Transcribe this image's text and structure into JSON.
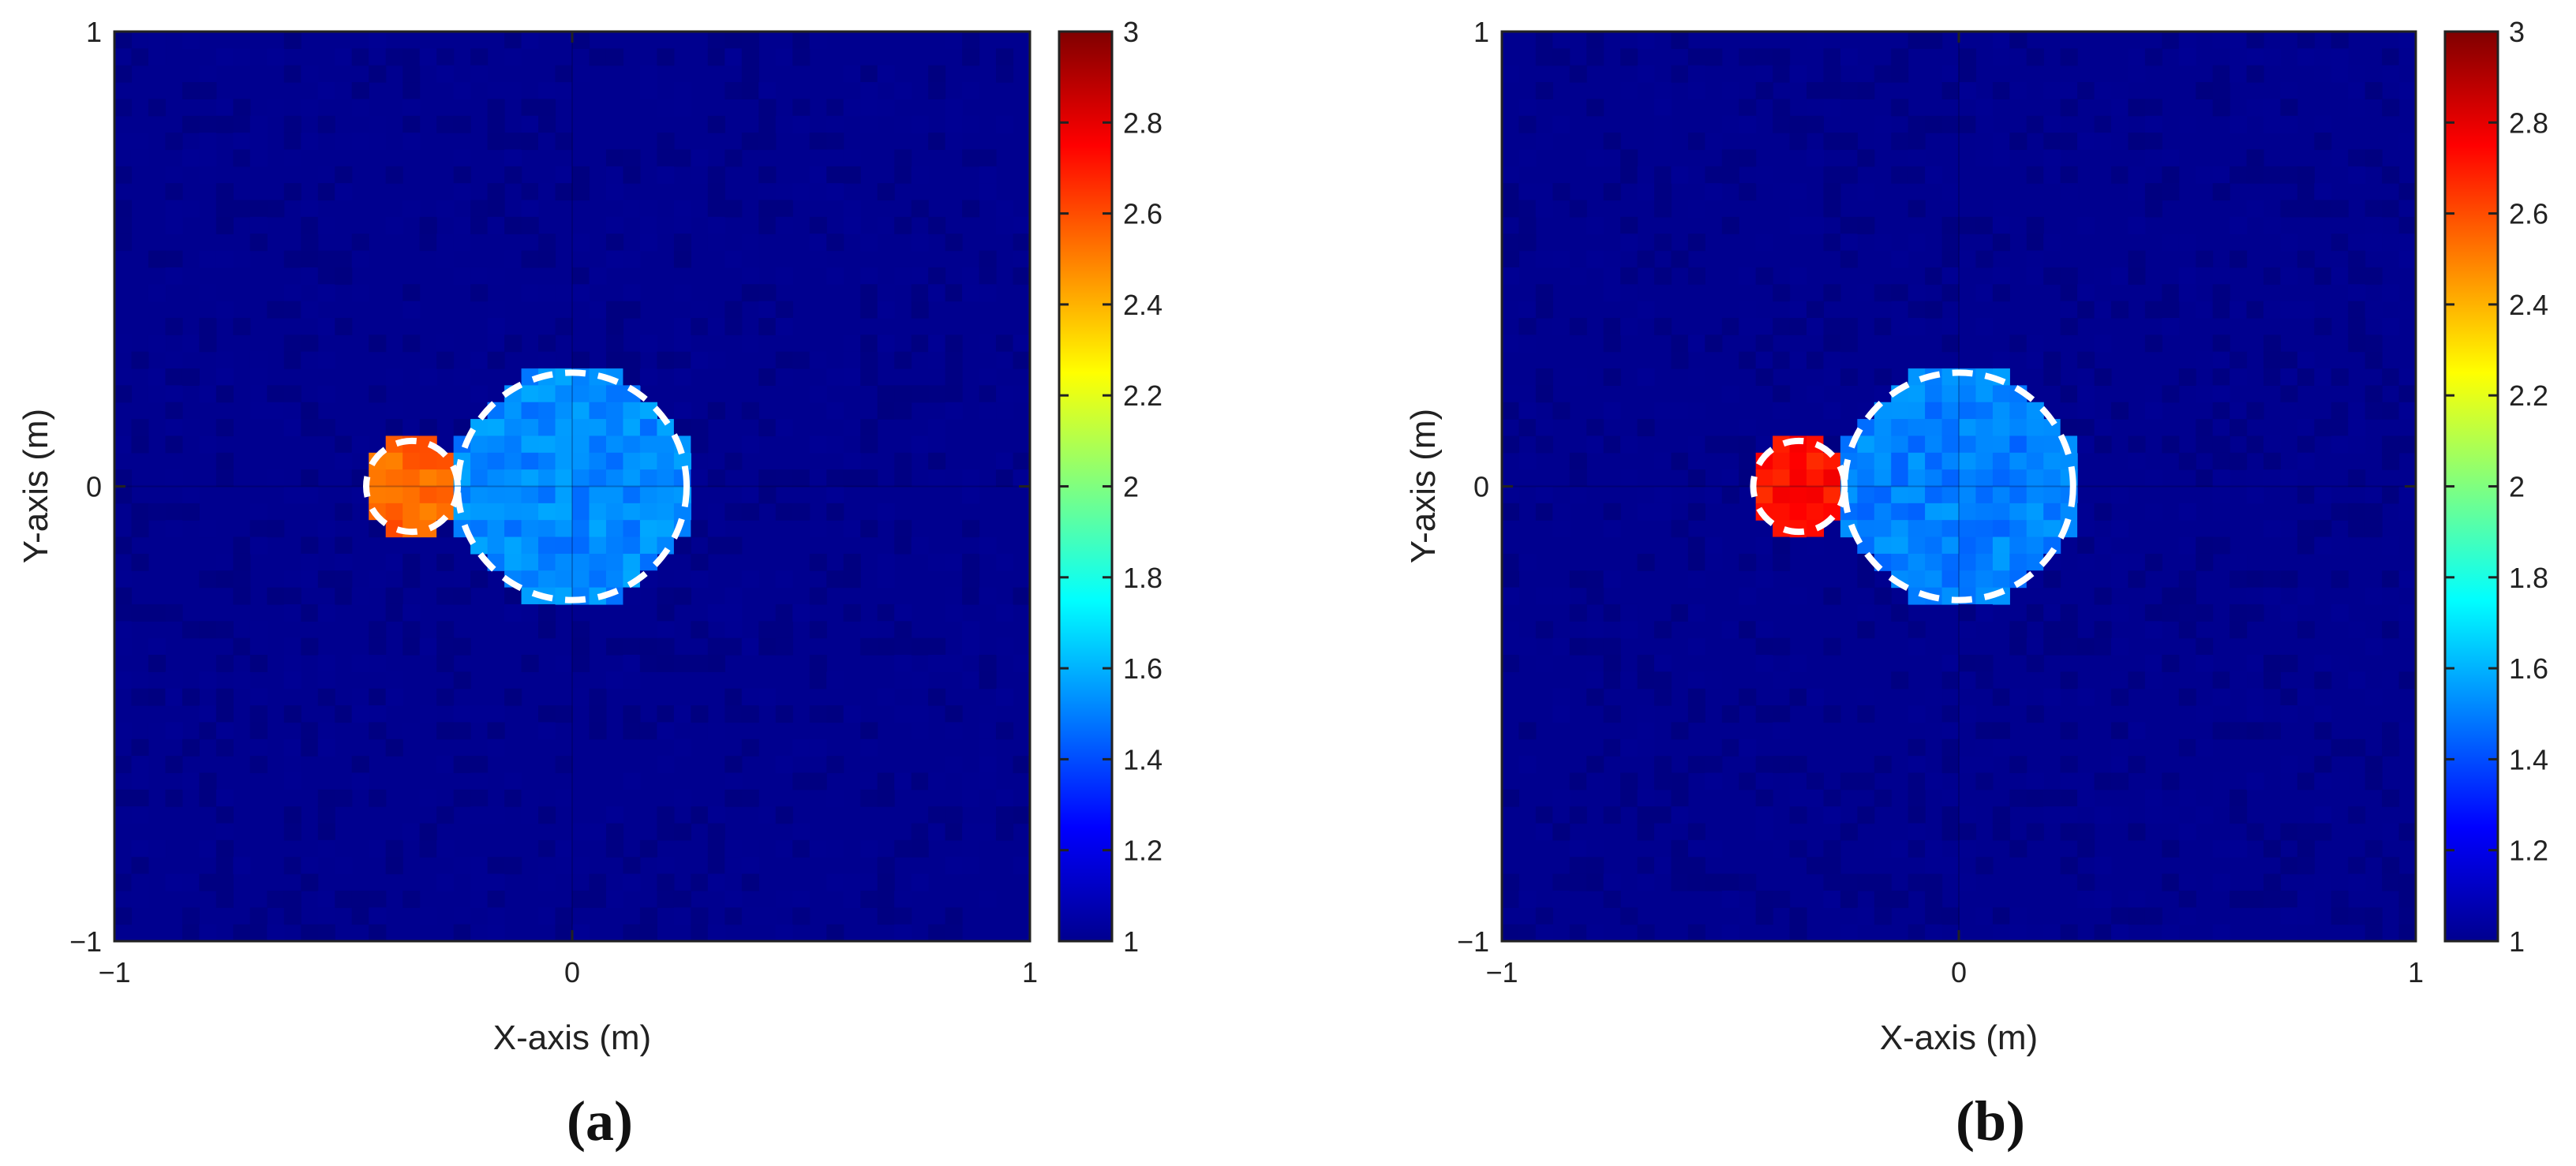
{
  "colormap": "jet",
  "background_color": "#00008f",
  "circle_outline_color": "#ffffff",
  "chart_data": [
    {
      "type": "heatmap",
      "panel_label": "(a)",
      "xlabel": "X-axis (m)",
      "ylabel": "Y-axis (m)",
      "xlim": [
        -1,
        1
      ],
      "ylim": [
        -1,
        1
      ],
      "xticks": [
        -1,
        0,
        1
      ],
      "yticks": [
        -1,
        0,
        1
      ],
      "xtick_labels": [
        "−1",
        "0",
        "1"
      ],
      "ytick_labels": [
        "−1",
        "0",
        "1"
      ],
      "colorbar": {
        "min": 1,
        "max": 3,
        "ticks": [
          1,
          1.2,
          1.4,
          1.6,
          1.8,
          2,
          2.2,
          2.4,
          2.6,
          2.8,
          3
        ],
        "tick_labels": [
          "1",
          "1.2",
          "1.4",
          "1.6",
          "1.8",
          "2",
          "2.2",
          "2.4",
          "2.6",
          "2.8",
          "3"
        ]
      },
      "background_value": 1.02,
      "objects": [
        {
          "name": "small scatterer",
          "center": [
            -0.35,
            0.0
          ],
          "radius": 0.1,
          "value": 2.55
        },
        {
          "name": "large scatterer",
          "center": [
            0.0,
            0.0
          ],
          "radius": 0.25,
          "value": 1.52
        }
      ],
      "outlines": [
        {
          "center": [
            -0.35,
            0.0
          ],
          "radius": 0.1
        },
        {
          "center": [
            0.0,
            0.0
          ],
          "radius": 0.25
        }
      ]
    },
    {
      "type": "heatmap",
      "panel_label": "(b)",
      "xlabel": "X-axis (m)",
      "ylabel": "Y-axis (m)",
      "xlim": [
        -1,
        1
      ],
      "ylim": [
        -1,
        1
      ],
      "xticks": [
        -1,
        0,
        1
      ],
      "yticks": [
        -1,
        0,
        1
      ],
      "xtick_labels": [
        "−1",
        "0",
        "1"
      ],
      "ytick_labels": [
        "−1",
        "0",
        "1"
      ],
      "colorbar": {
        "min": 1,
        "max": 3,
        "ticks": [
          1,
          1.2,
          1.4,
          1.6,
          1.8,
          2,
          2.2,
          2.4,
          2.6,
          2.8,
          3
        ],
        "tick_labels": [
          "1",
          "1.2",
          "1.4",
          "1.6",
          "1.8",
          "2",
          "2.2",
          "2.4",
          "2.6",
          "2.8",
          "3"
        ]
      },
      "background_value": 1.02,
      "objects": [
        {
          "name": "small scatterer",
          "center": [
            -0.35,
            0.0
          ],
          "radius": 0.1,
          "value": 2.72
        },
        {
          "name": "large scatterer",
          "center": [
            0.0,
            0.0
          ],
          "radius": 0.25,
          "value": 1.5
        }
      ],
      "outlines": [
        {
          "center": [
            -0.35,
            0.0
          ],
          "radius": 0.1
        },
        {
          "center": [
            0.0,
            0.0
          ],
          "radius": 0.25
        }
      ]
    }
  ]
}
